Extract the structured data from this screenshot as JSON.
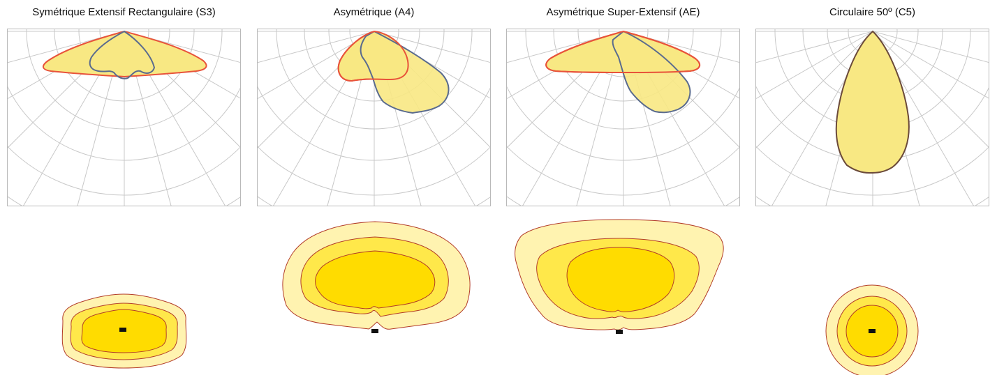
{
  "colors": {
    "grid": "#c8c8c8",
    "fill_light": "#fff3a6",
    "fill_polar": "#f8e883",
    "curve_red": "#e8533a",
    "curve_blue": "#5a6b8e",
    "curve_brown": "#6b4a3a",
    "iso_outer": "#fff3b0",
    "iso_mid": "#ffe84a",
    "iso_inner": "#ffdc00",
    "iso_line": "#b23b28",
    "source": "#111111"
  },
  "panels": [
    {
      "title": "Symétrique Extensif Rectangulaire (S3)",
      "icon": "photometric-polar-diagram"
    },
    {
      "title": "Asymétrique (A4)",
      "icon": "photometric-polar-diagram"
    },
    {
      "title": "Asymétrique Super-Extensif (AE)",
      "icon": "photometric-polar-diagram"
    },
    {
      "title": "Circulaire 50º (C5)",
      "icon": "photometric-polar-diagram"
    }
  ]
}
